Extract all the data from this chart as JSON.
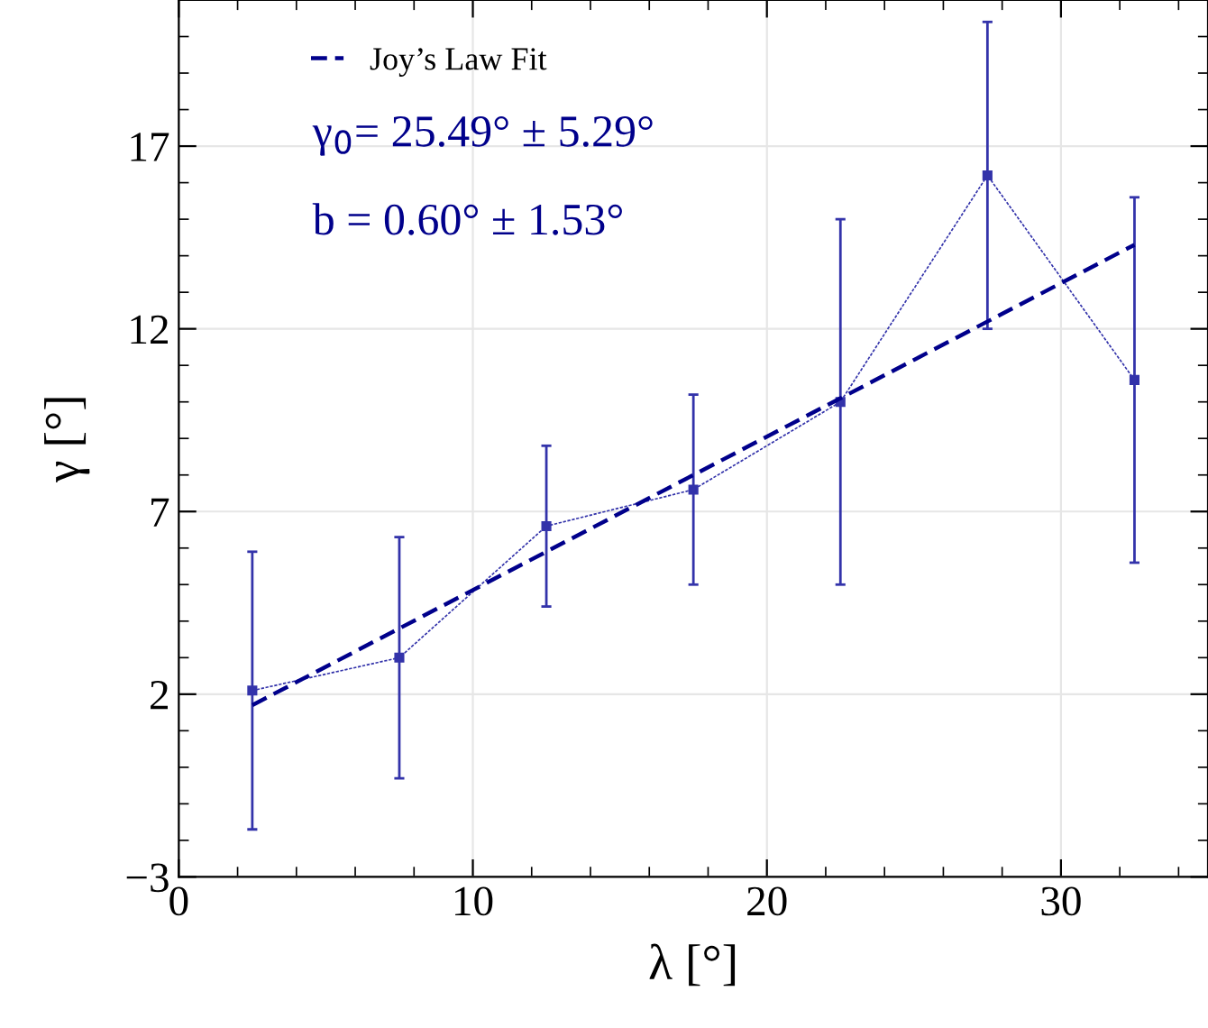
{
  "chart_data": {
    "type": "line",
    "xlabel": "λ [°]",
    "ylabel": "γ [°]",
    "xlim": [
      0,
      35
    ],
    "xticks": [
      0,
      10,
      20,
      30
    ],
    "ylim": [
      -3,
      21
    ],
    "yticks": [
      -3,
      2,
      7,
      12,
      17
    ],
    "grid": true,
    "legend": "top left",
    "annotations": [
      "γ$_{0}$= 25.49° ± 5.29°",
      "b = 0.60° ± 1.53°"
    ],
    "series": [
      {
        "color": "#3333aa",
        "marker": "square",
        "line_style": "dotted",
        "x": [
          2.5,
          7.5,
          12.5,
          17.5,
          22.5,
          27.5,
          32.5
        ],
        "values": [
          2.1,
          3.0,
          6.6,
          7.6,
          10.0,
          16.2,
          10.6
        ],
        "errors": [
          3.8,
          3.3,
          2.2,
          2.6,
          5.0,
          4.2,
          5.0
        ]
      },
      {
        "type": "line",
        "name": "Joy’s Law Fit",
        "color": "#00008b",
        "marker": "none",
        "line_style": "dashed",
        "x": [
          2.5,
          32.5
        ],
        "values": [
          1.7,
          14.3
        ]
      }
    ]
  }
}
